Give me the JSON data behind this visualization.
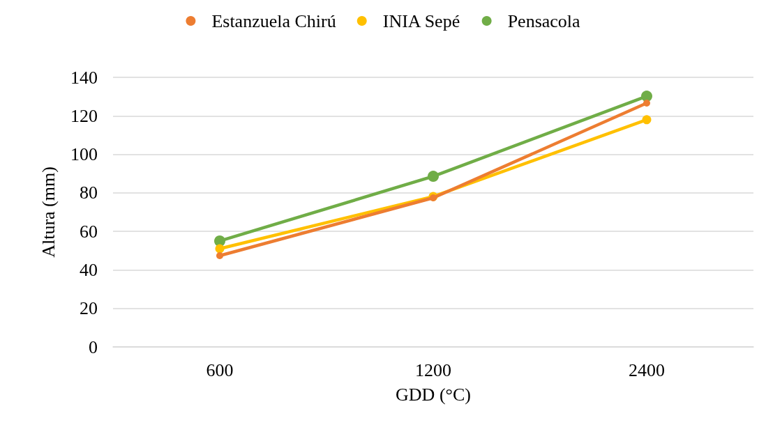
{
  "chart_data": {
    "type": "line",
    "xlabel": "GDD (°C)",
    "ylabel": "Altura (mm)",
    "categories": [
      "600",
      "1200",
      "2400"
    ],
    "series": [
      {
        "name": "Estanzuela Chirú",
        "color": "#ed7d31",
        "values": [
          47.4,
          77.4,
          126.6
        ]
      },
      {
        "name": "INIA Sepé",
        "color": "#ffc000",
        "values": [
          51,
          78.1,
          118
        ]
      },
      {
        "name": "Pensacola",
        "color": "#70ad47",
        "values": [
          55,
          88.6,
          130.2
        ]
      }
    ],
    "ylim": [
      0,
      140
    ],
    "yticks": [
      0,
      20,
      40,
      60,
      80,
      100,
      120,
      140
    ],
    "grid": "y",
    "legend": "top",
    "marker": "circle",
    "line_style": "solid"
  }
}
